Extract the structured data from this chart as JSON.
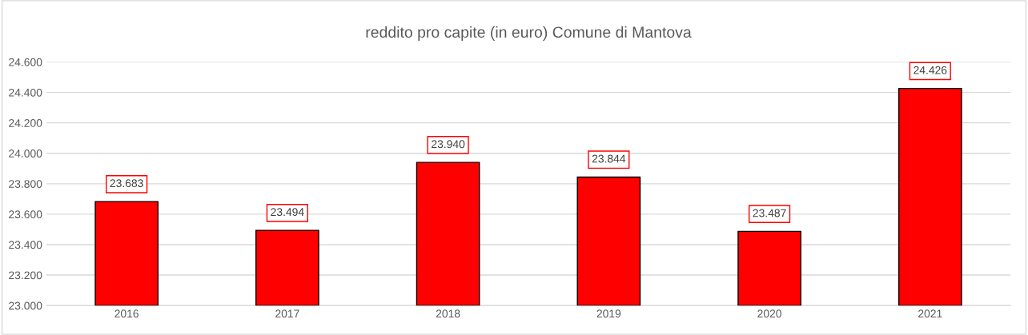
{
  "chart_data": {
    "type": "bar",
    "title": "reddito pro capite (in euro) Comune di Mantova",
    "categories": [
      "2016",
      "2017",
      "2018",
      "2019",
      "2020",
      "2021"
    ],
    "values": [
      23683,
      23494,
      23940,
      23844,
      23487,
      24426
    ],
    "value_labels": [
      "23.683",
      "23.494",
      "23.940",
      "23.844",
      "23.487",
      "24.426"
    ],
    "color": "#ff0000",
    "ylim": [
      23000,
      24600
    ],
    "yticks": [
      {
        "value": 23000,
        "label": "23.000"
      },
      {
        "value": 23200,
        "label": "23.200"
      },
      {
        "value": 23400,
        "label": "23.400"
      },
      {
        "value": 23600,
        "label": "23.600"
      },
      {
        "value": 23800,
        "label": "23.800"
      },
      {
        "value": 24000,
        "label": "24.000"
      },
      {
        "value": 24200,
        "label": "24.200"
      },
      {
        "value": 24400,
        "label": "24.400"
      },
      {
        "value": 24600,
        "label": "24.600"
      }
    ],
    "grid": "y"
  }
}
